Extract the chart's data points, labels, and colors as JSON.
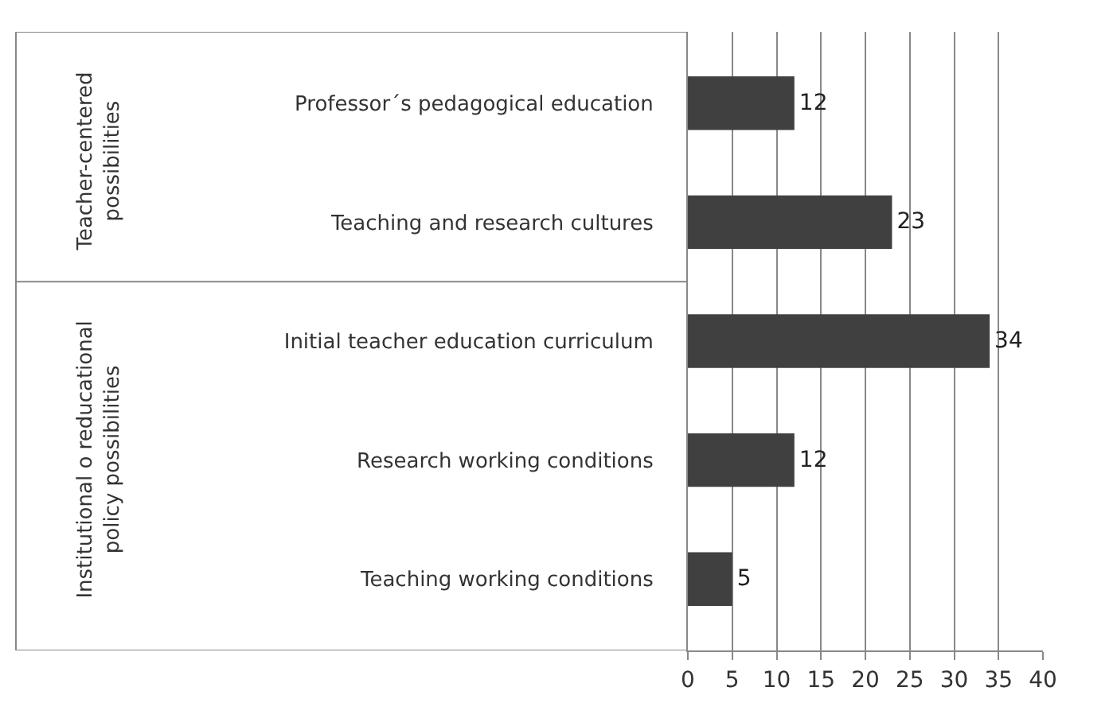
{
  "chart_data": {
    "type": "bar",
    "orientation": "horizontal",
    "categories": [
      "Professor´s pedagogical education",
      "Teaching and research cultures",
      "Initial teacher education curriculum",
      "Research working conditions",
      "Teaching working conditions"
    ],
    "values": [
      12,
      23,
      34,
      12,
      5
    ],
    "color": "#404040",
    "xlim": [
      0,
      40
    ],
    "xticks": [
      0,
      5,
      10,
      15,
      20,
      25,
      30,
      35,
      40
    ],
    "grid": "x",
    "data_labels": true,
    "annotations": [
      "Teacher-centered possibilities",
      "Institutional o reducational policy possibilities"
    ]
  }
}
